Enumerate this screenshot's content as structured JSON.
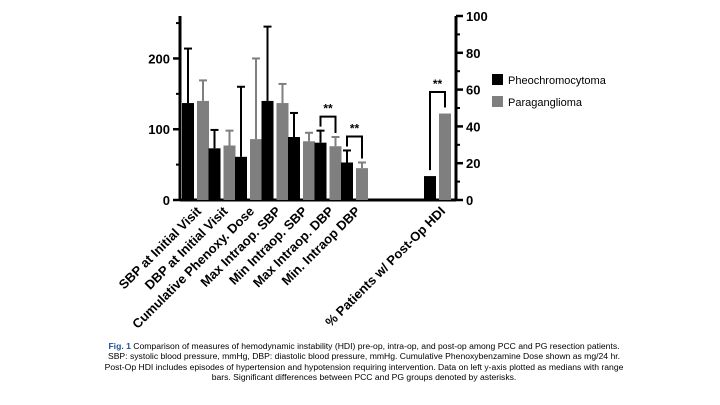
{
  "chart_data": [
    {
      "type": "bar",
      "axis": "left",
      "ylim": [
        0,
        260
      ],
      "yticks": [
        "0",
        "100",
        "200"
      ],
      "ytick_values": [
        0,
        100,
        200
      ],
      "categories": [
        "SBP at Initial Visit",
        "DBP at Initial Visit",
        "Cumulative Phenoxy. Dose",
        "Max Intraop. SBP",
        "Min Intraop. SBP",
        "Max Intraop. DBP",
        "Min. Intraop DBP"
      ],
      "series": [
        {
          "name": "Pheochromocytoma",
          "color": "#000000",
          "values": [
            137,
            73,
            61,
            140,
            89,
            81,
            53
          ],
          "range_high": [
            214,
            99,
            160,
            245,
            123,
            98,
            70
          ]
        },
        {
          "name": "Paraganglioma",
          "color": "#7f7f7f",
          "values": [
            140,
            77,
            86,
            137,
            83,
            76,
            45
          ],
          "range_high": [
            169,
            98,
            200,
            164,
            95,
            89,
            53
          ]
        }
      ],
      "significance": [
        {
          "category": "Max Intraop. DBP",
          "label": "**"
        },
        {
          "category": "Min. Intraop DBP",
          "label": "**"
        }
      ]
    },
    {
      "type": "bar",
      "axis": "right",
      "ylim": [
        0,
        100
      ],
      "yticks": [
        "0",
        "20",
        "40",
        "60",
        "80",
        "100"
      ],
      "ytick_values": [
        0,
        20,
        40,
        60,
        80,
        100
      ],
      "categories": [
        "% Patients w/ Post-Op HDI"
      ],
      "series": [
        {
          "name": "Pheochromocytoma",
          "color": "#000000",
          "values": [
            13
          ]
        },
        {
          "name": "Paraganglioma",
          "color": "#7f7f7f",
          "values": [
            47
          ]
        }
      ],
      "significance": [
        {
          "category": "% Patients w/ Post-Op HDI",
          "label": "**"
        }
      ]
    }
  ],
  "legend": [
    {
      "label": "Pheochromocytoma",
      "color": "#000000"
    },
    {
      "label": "Paraganglioma",
      "color": "#7f7f7f"
    }
  ],
  "caption": {
    "prefix": "Fig. 1",
    "text": "Comparison of measures of hemodynamic instability (HDI) pre-op, intra-op, and post-op among PCC and PG resection patients.  SBP: systolic blood pressure, mmHg, DBP: diastolic blood pressure, mmHg. Cumulative Phenoxybenzamine Dose shown as mg/24 hr. Post-Op HDI includes episodes of hypertension and hypotension requiring intervention.  Data on left y-axis plotted as medians with range bars.  Significant differences between PCC and PG groups denoted by asterisks."
  }
}
